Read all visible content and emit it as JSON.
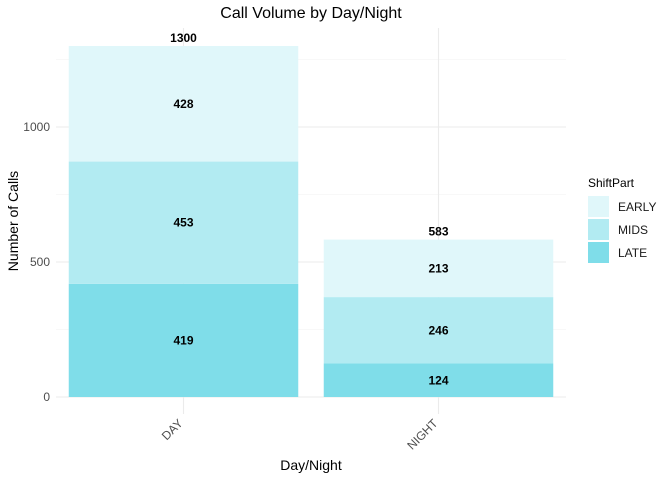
{
  "chart_data": {
    "type": "bar",
    "stacked": true,
    "title": "Call Volume by Day/Night",
    "xlabel": "Day/Night",
    "ylabel": "Number of Calls",
    "categories": [
      "DAY",
      "NIGHT"
    ],
    "series": [
      {
        "name": "LATE",
        "values": [
          419,
          124
        ],
        "color": "#7fdde9"
      },
      {
        "name": "MIDS",
        "values": [
          453,
          246
        ],
        "color": "#b2ebf2"
      },
      {
        "name": "EARLY",
        "values": [
          428,
          213
        ],
        "color": "#e0f7fa"
      }
    ],
    "totals": [
      1300,
      583
    ],
    "ylim": [
      0,
      1300
    ],
    "yticks": [
      0,
      500,
      1000
    ],
    "grid": true,
    "legend": {
      "title": "ShiftPart",
      "position": "right",
      "order": [
        "EARLY",
        "MIDS",
        "LATE"
      ]
    }
  }
}
